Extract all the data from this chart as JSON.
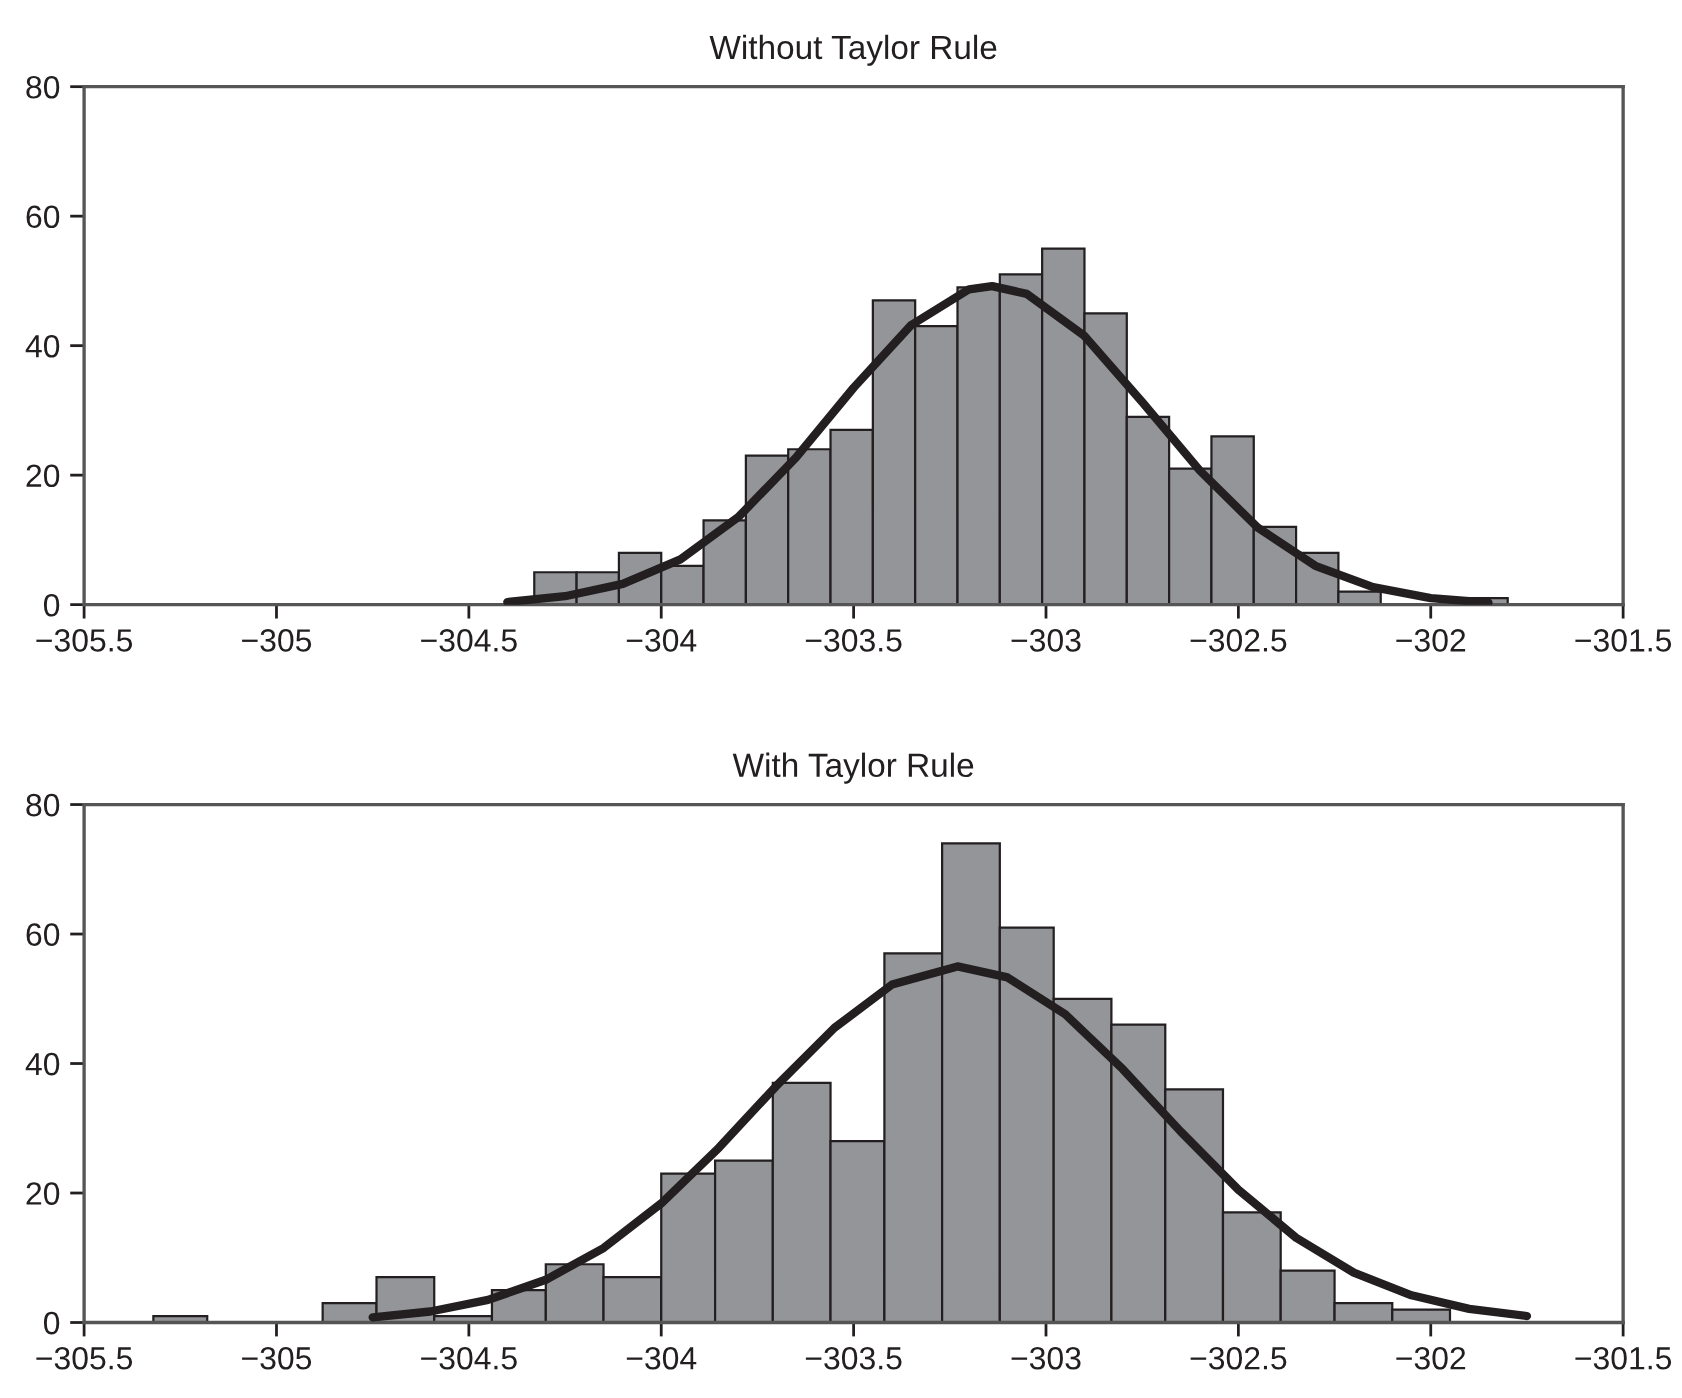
{
  "chart_data": [
    {
      "type": "histogram",
      "title": "Without Taylor Rule",
      "color": "#939598",
      "bins": [
        -304.33,
        -304.22,
        -304.11,
        -304.0,
        -303.89,
        -303.78,
        -303.67,
        -303.56,
        -303.45,
        -303.34,
        -303.23,
        -303.12,
        -303.01,
        -302.9,
        -302.79,
        -302.68,
        -302.57,
        -302.46,
        -302.35,
        -302.24,
        -302.13,
        -302.02,
        -301.91,
        -301.8
      ],
      "values": [
        5,
        5,
        8,
        6,
        13,
        23,
        24,
        27,
        47,
        43,
        49,
        51,
        55,
        45,
        29,
        21,
        26,
        12,
        8,
        2,
        0,
        0,
        1
      ],
      "series": [
        {
          "type": "line",
          "color": "#231f20",
          "x": [
            -304.4,
            -304.25,
            -304.1,
            -303.95,
            -303.8,
            -303.65,
            -303.5,
            -303.35,
            -303.2,
            -303.14,
            -303.05,
            -302.9,
            -302.75,
            -302.6,
            -302.45,
            -302.3,
            -302.15,
            -302.0,
            -301.85
          ],
          "values": [
            0.4,
            1.3,
            3.2,
            7.0,
            13.5,
            22.7,
            33.5,
            43.2,
            48.7,
            49.2,
            48.0,
            41.5,
            31.3,
            20.7,
            11.9,
            6.0,
            2.7,
            1.0,
            0.3
          ]
        }
      ],
      "xlim": [
        -305.5,
        -301.5
      ],
      "xticks": [
        {
          "value": -305.5,
          "label": "−305.5"
        },
        {
          "value": -305,
          "label": "−305"
        },
        {
          "value": -304.5,
          "label": "−304.5"
        },
        {
          "value": -304,
          "label": "−304"
        },
        {
          "value": -303.5,
          "label": "−303.5"
        },
        {
          "value": -303,
          "label": "−303"
        },
        {
          "value": -302.5,
          "label": "−302.5"
        },
        {
          "value": -302,
          "label": "−302"
        },
        {
          "value": -301.5,
          "label": "−301.5"
        }
      ],
      "ylim": [
        0,
        80
      ],
      "yticks": [
        0,
        20,
        40,
        60,
        80
      ],
      "grid": false
    },
    {
      "type": "histogram",
      "title": "With Taylor Rule",
      "color": "#939598",
      "bins": [
        -305.32,
        -305.18,
        -305.03,
        -304.88,
        -304.74,
        -304.59,
        -304.44,
        -304.3,
        -304.15,
        -304.0,
        -303.86,
        -303.71,
        -303.56,
        -303.42,
        -303.27,
        -303.12,
        -302.98,
        -302.83,
        -302.69,
        -302.54,
        -302.39,
        -302.25,
        -302.1,
        -301.95
      ],
      "values": [
        1,
        0,
        0,
        3,
        7,
        1,
        5,
        9,
        7,
        23,
        25,
        37,
        28,
        57,
        74,
        61,
        50,
        46,
        36,
        17,
        8,
        3,
        2
      ],
      "series": [
        {
          "type": "line",
          "color": "#231f20",
          "x": [
            -304.75,
            -304.6,
            -304.45,
            -304.3,
            -304.15,
            -304.0,
            -303.85,
            -303.7,
            -303.55,
            -303.4,
            -303.23,
            -303.1,
            -302.95,
            -302.8,
            -302.65,
            -302.5,
            -302.35,
            -302.2,
            -302.05,
            -301.9,
            -301.75
          ],
          "values": [
            0.8,
            1.7,
            3.5,
            6.6,
            11.5,
            18.4,
            27.0,
            36.6,
            45.5,
            52.2,
            55,
            53.3,
            47.6,
            39.1,
            29.5,
            20.5,
            13.1,
            7.7,
            4.2,
            2.1,
            1.0
          ]
        }
      ],
      "xlim": [
        -305.5,
        -301.5
      ],
      "xticks": [
        {
          "value": -305.5,
          "label": "−305.5"
        },
        {
          "value": -305,
          "label": "−305"
        },
        {
          "value": -304.5,
          "label": "−304.5"
        },
        {
          "value": -304,
          "label": "−304"
        },
        {
          "value": -303.5,
          "label": "−303.5"
        },
        {
          "value": -303,
          "label": "−303"
        },
        {
          "value": -302.5,
          "label": "−302.5"
        },
        {
          "value": -302,
          "label": "−302"
        },
        {
          "value": -301.5,
          "label": "−301.5"
        }
      ],
      "ylim": [
        0,
        80
      ],
      "yticks": [
        0,
        20,
        40,
        60,
        80
      ],
      "grid": false
    }
  ]
}
